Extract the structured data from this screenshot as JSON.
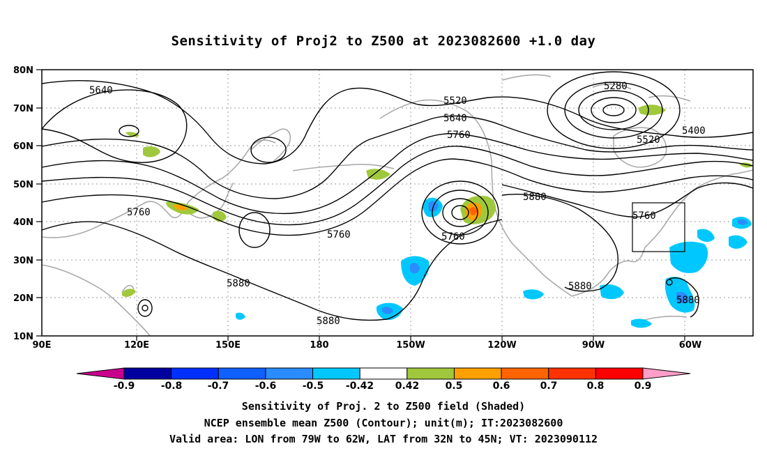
{
  "title": "Sensitivity of Proj2 to Z500 at 2023082600 +1.0 day",
  "map": {
    "lon_range": [
      90,
      300
    ],
    "lat_range": [
      10,
      80
    ],
    "lat_ticks": [
      "80N",
      "70N",
      "60N",
      "50N",
      "40N",
      "30N",
      "20N",
      "10N"
    ],
    "lon_ticks": [
      "90E",
      "120E",
      "150E",
      "180",
      "150W",
      "120W",
      "90W",
      "60W"
    ],
    "contour_labels": [
      "5640",
      "5520",
      "5640",
      "5760",
      "5280",
      "5400",
      "5520",
      "5760",
      "5760",
      "5760",
      "5880",
      "5760",
      "5880",
      "5880",
      "5880",
      "5880"
    ],
    "valid_box": {
      "lon": [
        -79,
        -62
      ],
      "lat": [
        32,
        45
      ]
    }
  },
  "colorbar": {
    "labels": [
      "-0.9",
      "-0.8",
      "-0.7",
      "-0.6",
      "-0.5",
      "-0.42",
      "0.42",
      "0.5",
      "0.6",
      "0.7",
      "0.8",
      "0.9"
    ],
    "colors": [
      "#0000a0",
      "#0030ff",
      "#1060ff",
      "#2a8cff",
      "#00c8ff",
      "#ffffff",
      "#a0c83c",
      "#ffa000",
      "#ff6400",
      "#ff3200",
      "#ff0000"
    ],
    "left_tri": "#c8008c",
    "right_tri": "#ff9ec8"
  },
  "captions": {
    "line1": "Sensitivity of Proj. 2 to Z500 field (Shaded)",
    "line2": "NCEP ensemble mean Z500 (Contour); unit(m); IT:2023082600",
    "line3": "Valid area: LON from 79W to 62W, LAT from 32N to 45N; VT: 2023090112"
  }
}
